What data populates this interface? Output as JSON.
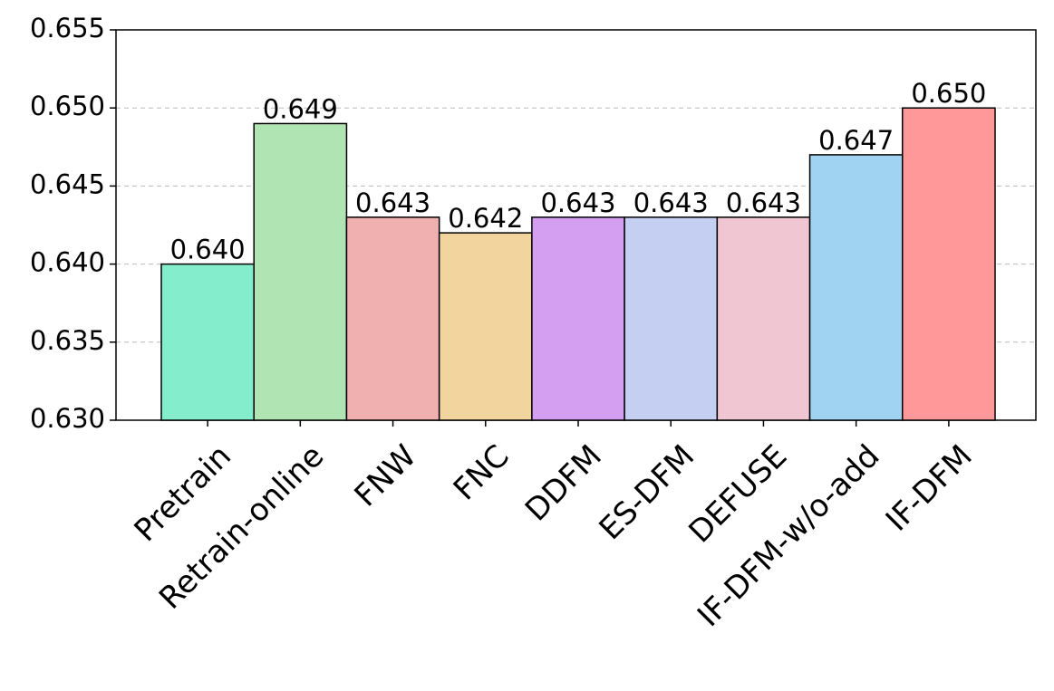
{
  "chart_data": {
    "type": "bar",
    "categories": [
      "Pretrain",
      "Retrain-online",
      "FNW",
      "FNC",
      "DDFM",
      "ES-DFM",
      "DEFUSE",
      "IF-DFM-w/o-add",
      "IF-DFM"
    ],
    "values": [
      0.64,
      0.649,
      0.643,
      0.642,
      0.643,
      0.643,
      0.643,
      0.647,
      0.65
    ],
    "value_labels": [
      "0.640",
      "0.649",
      "0.643",
      "0.642",
      "0.643",
      "0.643",
      "0.643",
      "0.647",
      "0.650"
    ],
    "colors": [
      "#84edcc",
      "#b1e4b3",
      "#f1b0b0",
      "#f1d49e",
      "#d49ef1",
      "#c5cff1",
      "#efc6d1",
      "#9fd3f1",
      "#ff9999"
    ],
    "ylim": [
      0.63,
      0.655
    ],
    "yticks": [
      {
        "value": 0.63,
        "label": "0.630"
      },
      0.635,
      {
        "value": 0.64,
        "label": "0.640"
      },
      0.645,
      {
        "value": 0.65,
        "label": "0.650"
      },
      0.655
    ],
    "grid": true
  }
}
